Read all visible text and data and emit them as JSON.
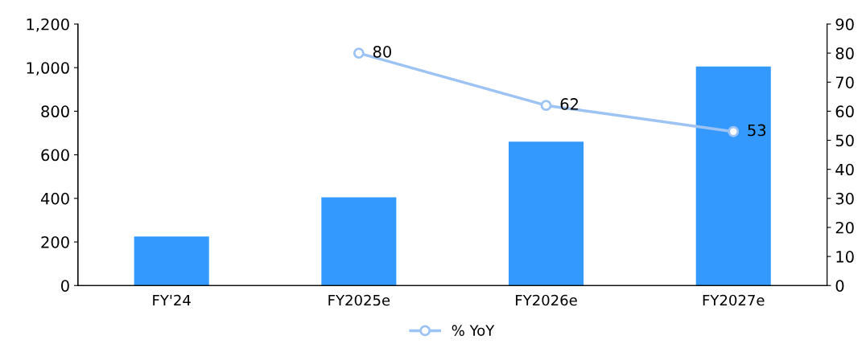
{
  "chart_data": {
    "type": "bar",
    "categories": [
      "FY'24",
      "FY2025e",
      "FY2026e",
      "FY2027e"
    ],
    "series": [
      {
        "color": "#3399ff",
        "values": [
          225,
          405,
          660,
          1005
        ]
      },
      {
        "type": "line",
        "name": "% YoY",
        "axis": "y2",
        "color": "#9dc3f5",
        "values": [
          null,
          80,
          62,
          53
        ],
        "value_labels": [
          null,
          "80",
          "62",
          "53"
        ]
      }
    ],
    "ylim": [
      0,
      1200
    ],
    "yticks": [
      0,
      200,
      400,
      600,
      800,
      {
        "value": 1000,
        "label": "1,000"
      },
      {
        "value": 1200,
        "label": "1,200"
      }
    ],
    "y2lim": [
      0,
      90
    ],
    "y2ticks": [
      0,
      10,
      20,
      30,
      40,
      50,
      60,
      70,
      80,
      90
    ],
    "grid": false,
    "legend": "bottom",
    "marker": "circle",
    "line_style": "solid"
  }
}
